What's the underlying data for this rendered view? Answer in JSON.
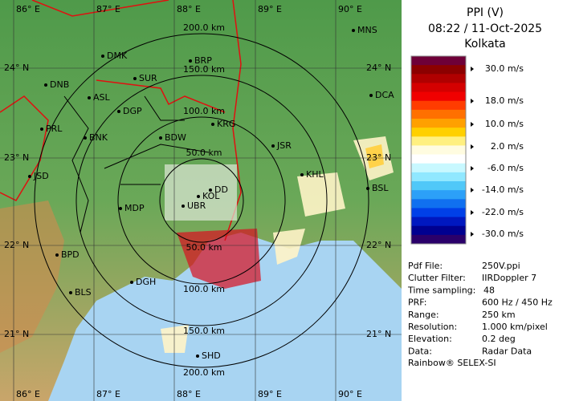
{
  "map": {
    "lon_labels": [
      "86° E",
      "87° E",
      "88° E",
      "89° E",
      "90° E"
    ],
    "lat_labels": [
      "24° N",
      "23° N",
      "22° N",
      "21° N"
    ],
    "range_labels": [
      "50.0 km",
      "100.0 km",
      "150.0 km",
      "200.0 km"
    ],
    "cities": [
      "MNS",
      "DMK",
      "BRP",
      "DNB",
      "SUR",
      "ASL",
      "DGP",
      "DCA",
      "PRL",
      "BNK",
      "KRG",
      "JSR",
      "BDW",
      "JSD",
      "KHL",
      "BSL",
      "MDP",
      "KOL",
      "UBR",
      "DD",
      "BPD",
      "DGH",
      "BLS",
      "SHD"
    ]
  },
  "panel": {
    "title": "PPI (V)",
    "time": "08:22 / 11-Oct-2025",
    "site": "Kolkata",
    "legend": {
      "labels": [
        "30.0 m/s",
        "18.0 m/s",
        "10.0 m/s",
        "2.0 m/s",
        "-6.0 m/s",
        "-14.0 m/s",
        "-22.0 m/s",
        "-30.0 m/s"
      ],
      "colors": [
        "#6e0038",
        "#8c0000",
        "#b00000",
        "#d40000",
        "#f00000",
        "#ff3c00",
        "#ff7000",
        "#ffa000",
        "#ffd000",
        "#fff080",
        "#fffce0",
        "#ffffff",
        "#c8f8ff",
        "#90e8ff",
        "#50c8f8",
        "#2ca0f8",
        "#1070f0",
        "#0040e8",
        "#0018c0",
        "#000090",
        "#2a006a"
      ]
    },
    "info": [
      [
        "Pdf File:",
        "250V.ppi"
      ],
      [
        "Clutter Filter:",
        "IIRDoppler 7"
      ],
      [
        "Time sampling:",
        "48"
      ],
      [
        "PRF:",
        "600 Hz / 450 Hz"
      ],
      [
        "Range:",
        "250 km"
      ],
      [
        "Resolution:",
        "1.000 km/pixel"
      ],
      [
        "Elevation:",
        "0.2 deg"
      ],
      [
        "Data:",
        "Radar Data"
      ]
    ],
    "footer": "Rainbow® SELEX-SI"
  }
}
